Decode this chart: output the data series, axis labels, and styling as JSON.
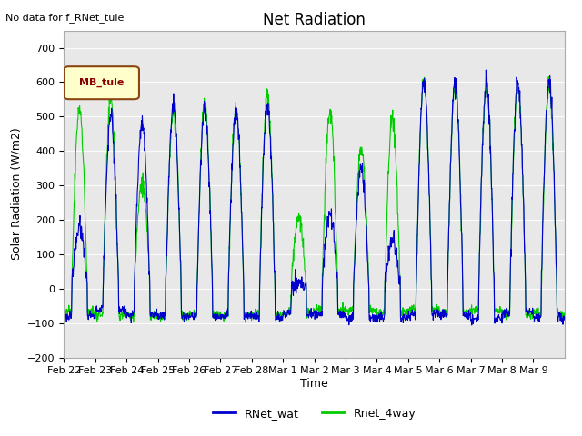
{
  "title": "Net Radiation",
  "ylabel": "Solar Radiation (W/m2)",
  "xlabel": "Time",
  "annotation": "No data for f_RNet_tule",
  "legend_label": "MB_tule",
  "series1_label": "RNet_wat",
  "series2_label": "Rnet_4way",
  "series1_color": "#0000cc",
  "series2_color": "#00cc00",
  "ylim": [
    -200,
    750
  ],
  "yticks": [
    -200,
    -100,
    0,
    100,
    200,
    300,
    400,
    500,
    600,
    700
  ],
  "xtick_labels": [
    "Feb 22",
    "Feb 23",
    "Feb 24",
    "Feb 25",
    "Feb 26",
    "Feb 27",
    "Feb 28",
    "Mar 1",
    "Mar 2",
    "Mar 3",
    "Mar 4",
    "Mar 5",
    "Mar 6",
    "Mar 7",
    "Mar 8",
    "Mar 9"
  ],
  "day_peaks_blue": [
    175,
    500,
    480,
    535,
    520,
    515,
    525,
    20,
    220,
    350,
    140,
    600,
    600,
    600,
    600,
    600
  ],
  "day_peaks_green": [
    525,
    550,
    310,
    510,
    535,
    520,
    565,
    210,
    515,
    415,
    500,
    605,
    590,
    590,
    590,
    590
  ]
}
